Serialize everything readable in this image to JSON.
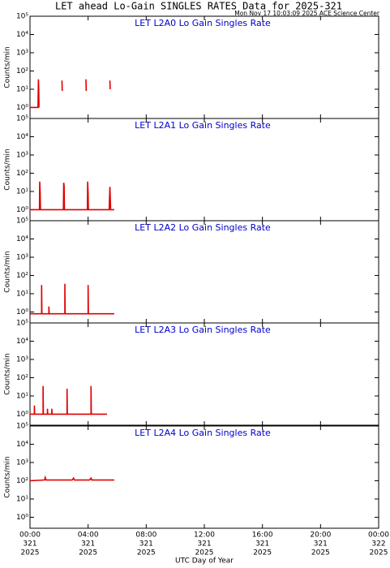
{
  "title": "LET ahead Lo-Gain SINGLES RATES Data for 2025-321",
  "subtitle": "Mon Nov 17 10:03:09 2025 ACE Science Center",
  "x_label": "UTC Day of Year",
  "y_label": "Counts/min",
  "xlim": [
    0,
    24
  ],
  "xticks": [
    {
      "value": 0,
      "label": "00:00"
    },
    {
      "value": 4,
      "label": "04:00"
    },
    {
      "value": 8,
      "label": "08:00"
    },
    {
      "value": 12,
      "label": "12:00"
    },
    {
      "value": 16,
      "label": "16:00"
    },
    {
      "value": 20,
      "label": "20:00"
    },
    {
      "value": 24,
      "label": "00:00"
    }
  ],
  "xtick_days": [
    "321",
    "321",
    "321",
    "321",
    "321",
    "321",
    "322"
  ],
  "xtick_years": [
    "2025",
    "2025",
    "2025",
    "2025",
    "2025",
    "2025",
    "2025"
  ],
  "ylim": [
    0.25,
    100000
  ],
  "log_y": true,
  "yticks": [
    {
      "value": 1,
      "label": "10⁰"
    },
    {
      "value": 10,
      "label": "10¹"
    },
    {
      "value": 100,
      "label": "10²"
    },
    {
      "value": 1000,
      "label": "10³"
    },
    {
      "value": 10000,
      "label": "10⁴"
    },
    {
      "value": 100000,
      "label": "10⁵"
    }
  ],
  "chart_data": [
    {
      "type": "line",
      "title": "LET L2A0 Lo Gain Singles Rate",
      "color": "#e00000",
      "x": [
        0,
        0.3,
        0.55,
        0.58,
        0.6,
        0.62,
        0.9,
        2.2,
        2.22,
        2.25,
        3.85,
        3.87,
        3.9,
        5.5,
        5.52,
        5.55
      ],
      "values": [
        1,
        1,
        1,
        35,
        12,
        1,
        null,
        30,
        8,
        null,
        35,
        8,
        null,
        30,
        10,
        null
      ]
    },
    {
      "type": "line",
      "title": "LET L2A1 Lo Gain Singles Rate",
      "color": "#e00000",
      "x": [
        0,
        0.6,
        0.65,
        0.67,
        0.7,
        0.72,
        2.3,
        2.32,
        2.35,
        2.37,
        3.95,
        3.97,
        4.0,
        4.02,
        5.45,
        5.5,
        5.52,
        5.55,
        5.8
      ],
      "values": [
        1,
        1,
        1,
        35,
        8,
        1,
        1,
        30,
        20,
        1,
        1,
        35,
        8,
        1,
        1,
        18,
        6,
        1,
        1
      ]
    },
    {
      "type": "line",
      "title": "LET L2A2 Lo Gain Singles Rate",
      "color": "#e00000",
      "x": [
        0,
        0.8,
        0.8,
        0.82,
        1.3,
        1.3,
        1.32,
        2.4,
        2.4,
        2.42,
        4.0,
        4.0,
        4.02,
        5.8
      ],
      "values": [
        0.8,
        0.8,
        30,
        0.8,
        0.8,
        2,
        0.8,
        0.8,
        35,
        0.8,
        0.8,
        30,
        0.8,
        0.8
      ]
    },
    {
      "type": "line",
      "title": "LET L2A3 Lo Gain Singles Rate",
      "color": "#e00000",
      "x": [
        0,
        0.3,
        0.3,
        0.32,
        0.9,
        0.9,
        0.92,
        1.2,
        1.2,
        1.22,
        1.5,
        1.5,
        1.52,
        2.55,
        2.55,
        2.57,
        4.2,
        4.2,
        4.22,
        5.3
      ],
      "values": [
        1,
        1,
        3,
        1,
        1,
        35,
        1,
        1,
        2,
        1,
        1,
        2,
        1,
        1,
        25,
        1,
        1,
        35,
        1,
        1
      ]
    },
    {
      "type": "line",
      "title": "LET L2A4 Lo Gain Singles Rate",
      "color": "#e00000",
      "x": [
        0,
        0.5,
        1.0,
        1.05,
        1.1,
        2.0,
        2.9,
        3.0,
        3.05,
        4.1,
        4.2,
        4.25,
        5.0,
        5.8
      ],
      "values": [
        100,
        105,
        110,
        150,
        110,
        110,
        110,
        140,
        110,
        110,
        140,
        110,
        110,
        110
      ]
    }
  ]
}
